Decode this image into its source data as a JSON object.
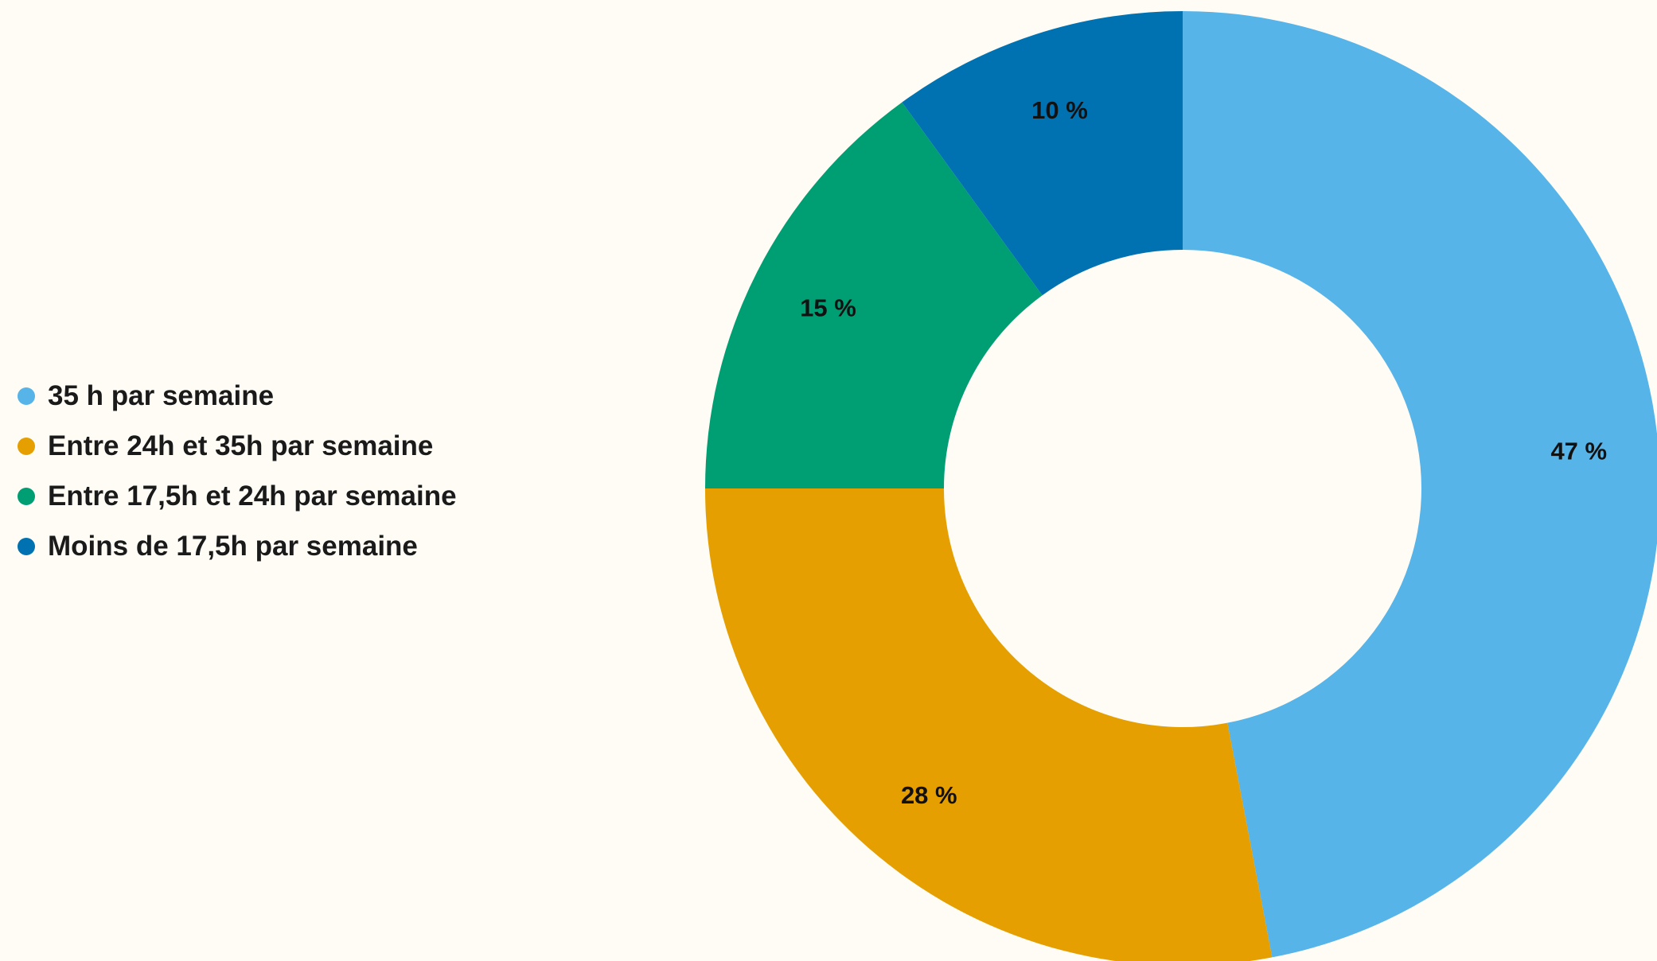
{
  "chart_data": {
    "type": "pie",
    "donut": true,
    "legend_position": "left",
    "categories": [
      "35 h par semaine",
      "Entre 24h et 35h par semaine",
      "Entre 17,5h et 24h par semaine",
      "Moins de 17,5h par semaine"
    ],
    "values": [
      47,
      28,
      15,
      10
    ],
    "data_labels": [
      "47 %",
      "28 %",
      "15 %",
      "10 %"
    ],
    "colors": [
      "#56b4e9",
      "#e69f00",
      "#009e73",
      "#0072b2"
    ]
  }
}
